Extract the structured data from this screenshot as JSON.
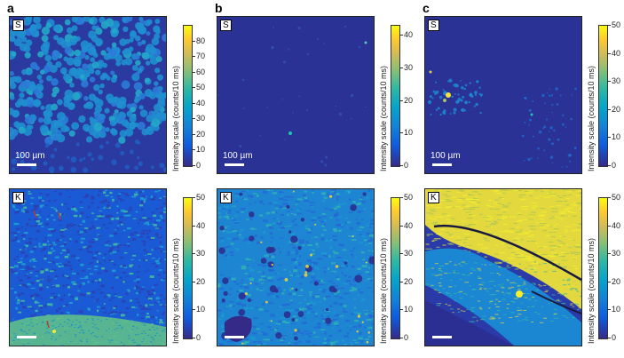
{
  "figure": {
    "columns": [
      {
        "letter": "a",
        "top": {
          "tag": "S",
          "scalebar": "100 µm",
          "cbar_max": 90,
          "ticks": [
            0,
            10,
            20,
            30,
            40,
            50,
            60,
            70,
            80
          ]
        },
        "bottom": {
          "tag": "K",
          "scalebar": "",
          "cbar_max": 50,
          "ticks": [
            0,
            10,
            20,
            30,
            40,
            50
          ]
        }
      },
      {
        "letter": "b",
        "top": {
          "tag": "S",
          "scalebar": "100 µm",
          "cbar_max": 43,
          "ticks": [
            0,
            10,
            20,
            30,
            40
          ]
        },
        "bottom": {
          "tag": "K",
          "scalebar": "",
          "cbar_max": 50,
          "ticks": [
            0,
            10,
            20,
            30,
            40,
            50
          ]
        }
      },
      {
        "letter": "c",
        "top": {
          "tag": "S",
          "scalebar": "100 µm",
          "cbar_max": 50,
          "ticks": [
            0,
            10,
            20,
            30,
            40,
            50
          ]
        },
        "bottom": {
          "tag": "K",
          "scalebar": "",
          "cbar_max": 50,
          "ticks": [
            0,
            10,
            20,
            30,
            40,
            50
          ]
        }
      }
    ],
    "colorbar_label": "Intensity scale (counts/10 ms)",
    "colormap": [
      "#352a87",
      "#0f5cdd",
      "#06a4ca",
      "#87bf77",
      "#fec832",
      "#f9fb0e"
    ]
  }
}
